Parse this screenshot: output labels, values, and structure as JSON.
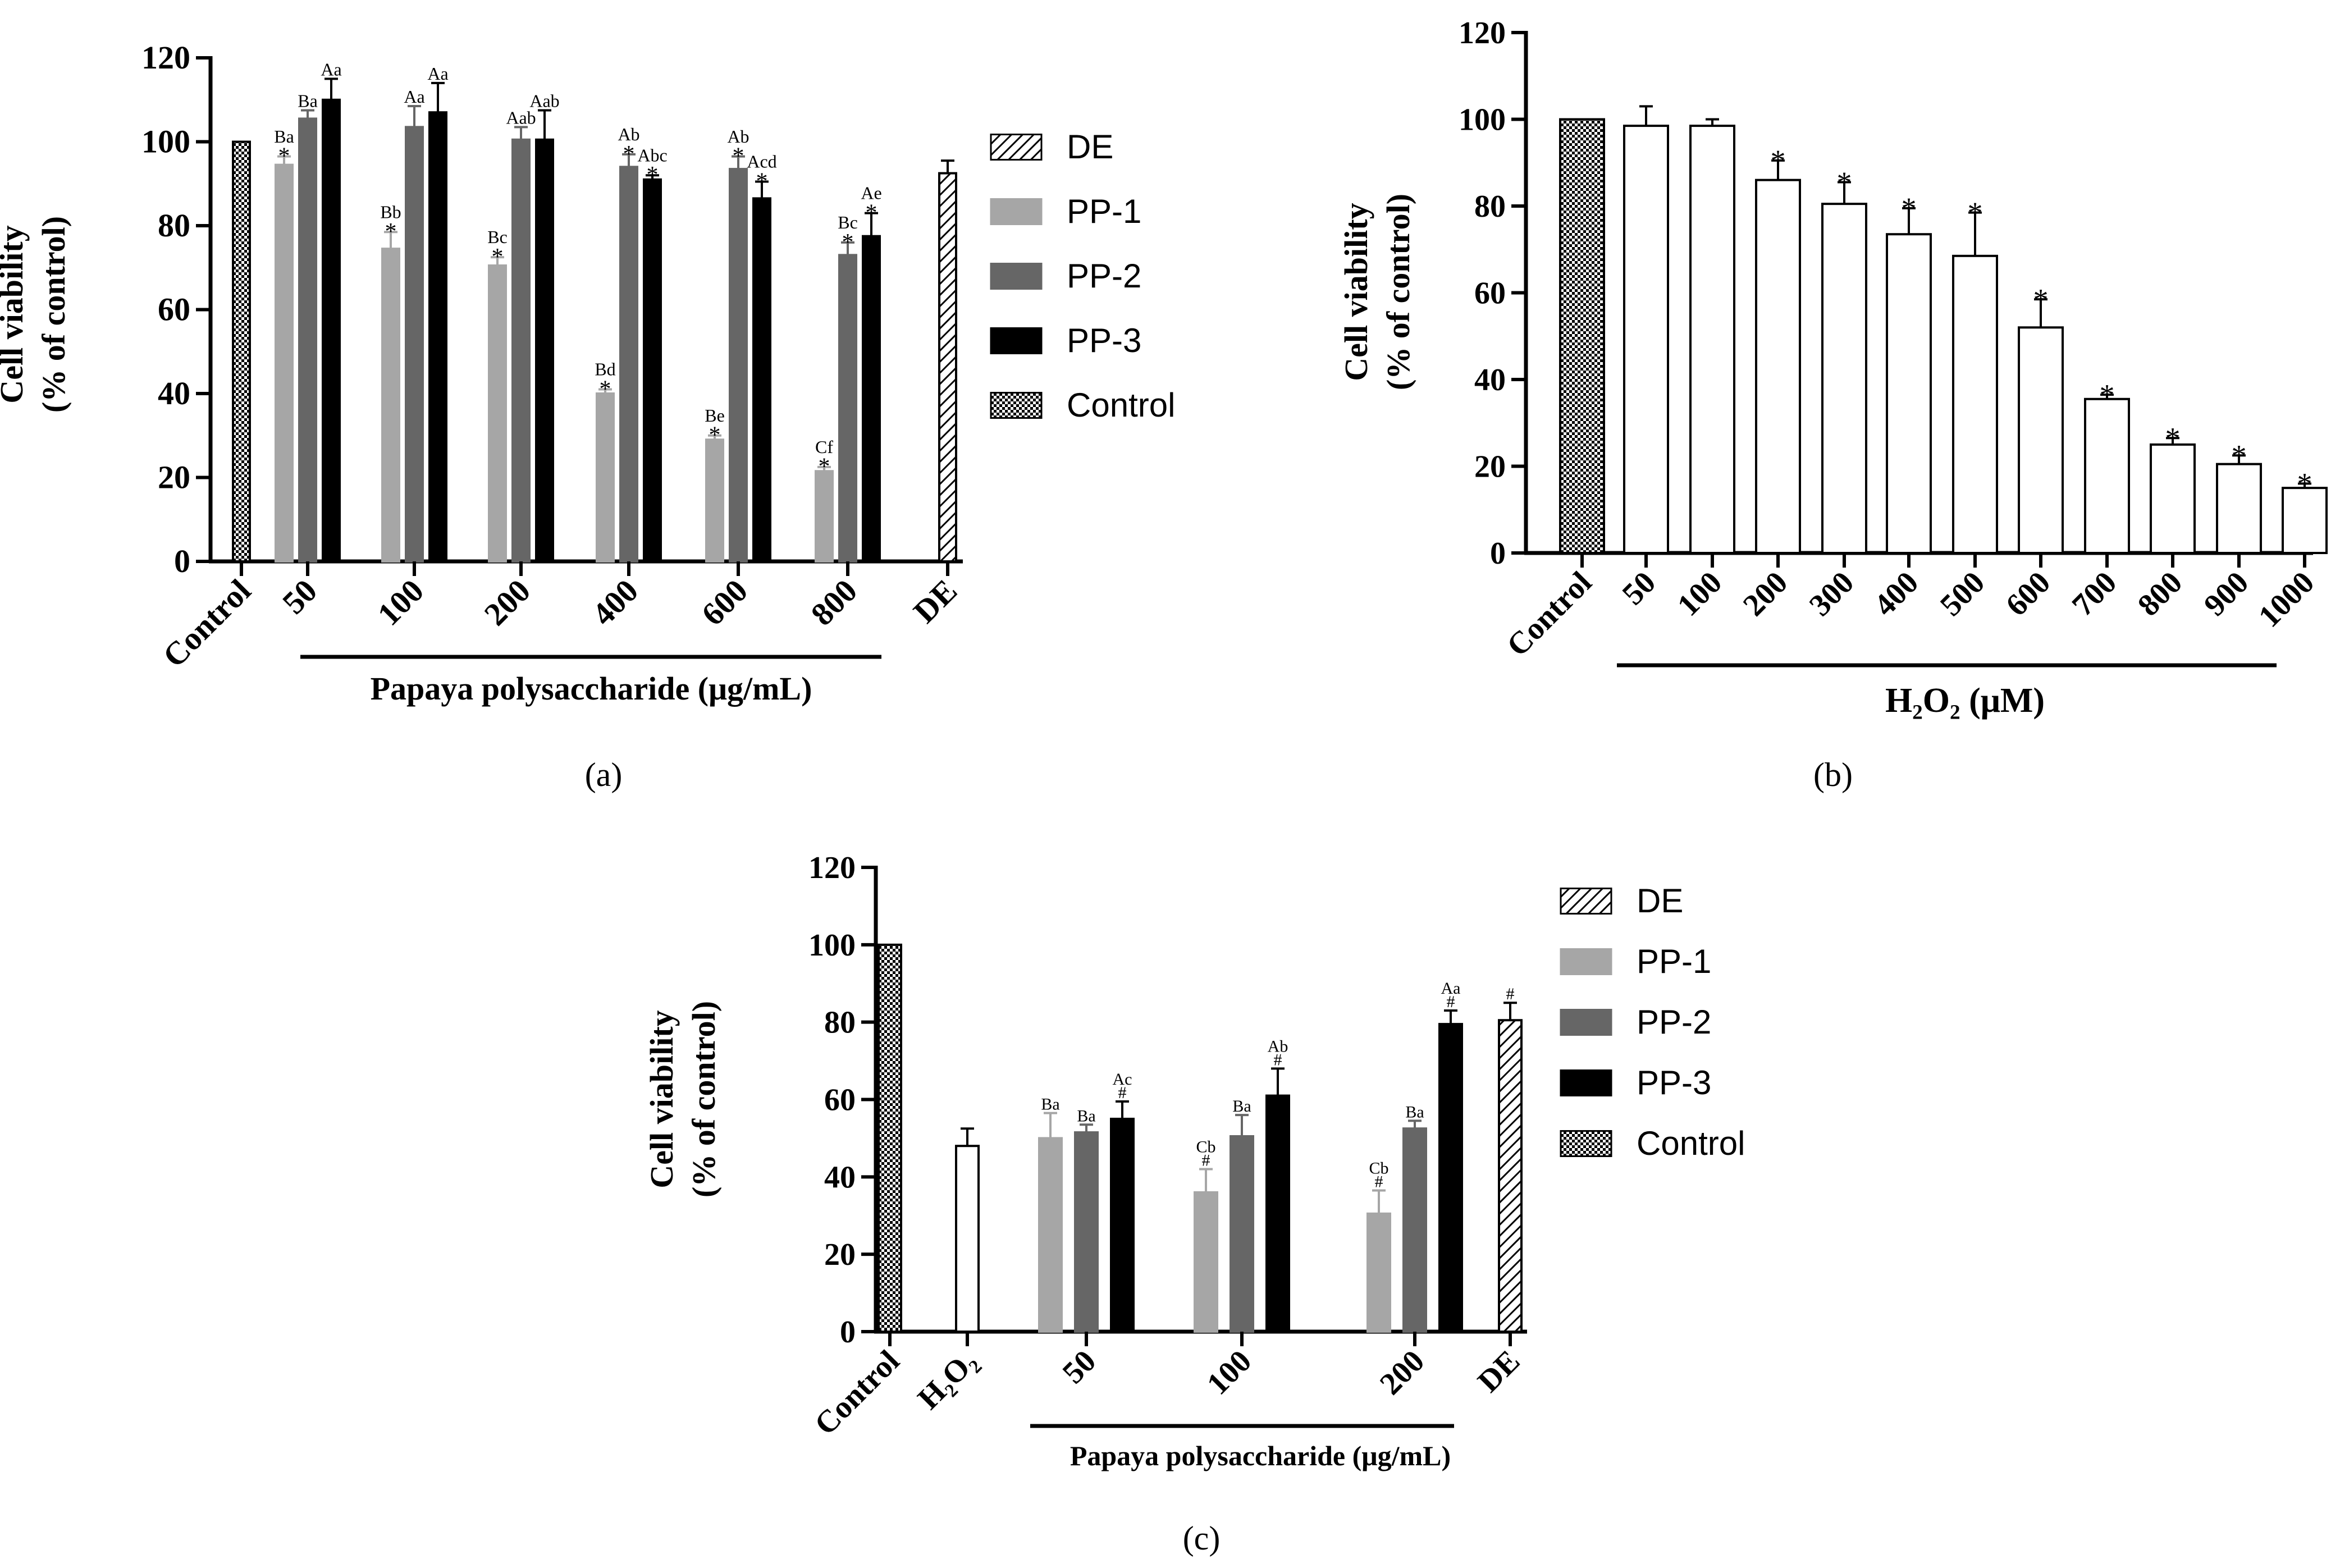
{
  "figure": {
    "colors": {
      "pp1": "#a6a6a6",
      "pp2": "#666666",
      "pp3": "#000000",
      "de": "#ffffff",
      "control": "#ffffff",
      "h2o2": "#ffffff"
    }
  },
  "chart_data": [
    {
      "id": "a",
      "panel_label": "(a)",
      "type": "bar",
      "title": "",
      "ylabel_line1": "Cell viability",
      "ylabel_line2": "(% of control)",
      "xlabel": "Papaya polysaccharide (μg/mL)",
      "ylim": [
        0,
        120
      ],
      "yticks": [
        "0",
        "20",
        "40",
        "60",
        "80",
        "100",
        "120"
      ],
      "groups": [
        "Control",
        "50",
        "100",
        "200",
        "400",
        "600",
        "800",
        "DE"
      ],
      "legend": [
        "DE",
        "PP-1",
        "PP-2",
        "PP-3",
        "Control"
      ],
      "bars": [
        {
          "group": 0,
          "series": "Control",
          "value": 100,
          "err": 0,
          "label": "",
          "star": ""
        },
        {
          "group": 1,
          "series": "PP-1",
          "value": 94.5,
          "err": 2,
          "label": "Ba",
          "star": "*"
        },
        {
          "group": 1,
          "series": "PP-2",
          "value": 105.5,
          "err": 2,
          "label": "Ba",
          "star": ""
        },
        {
          "group": 1,
          "series": "PP-3",
          "value": 110,
          "err": 5,
          "label": "Aa",
          "star": ""
        },
        {
          "group": 2,
          "series": "PP-1",
          "value": 74.5,
          "err": 4,
          "label": "Bb",
          "star": "*"
        },
        {
          "group": 2,
          "series": "PP-2",
          "value": 103.5,
          "err": 5,
          "label": "Aa",
          "star": ""
        },
        {
          "group": 2,
          "series": "PP-3",
          "value": 107,
          "err": 7,
          "label": "Aa",
          "star": ""
        },
        {
          "group": 3,
          "series": "PP-1",
          "value": 70.5,
          "err": 2,
          "label": "Bc",
          "star": "*"
        },
        {
          "group": 3,
          "series": "PP-2",
          "value": 100.5,
          "err": 3,
          "label": "Aab",
          "star": ""
        },
        {
          "group": 3,
          "series": "PP-3",
          "value": 100.5,
          "err": 7,
          "label": "Aab",
          "star": ""
        },
        {
          "group": 4,
          "series": "PP-1",
          "value": 40,
          "err": 1,
          "label": "Bd",
          "star": "*"
        },
        {
          "group": 4,
          "series": "PP-2",
          "value": 94,
          "err": 3,
          "label": "Ab",
          "star": "*"
        },
        {
          "group": 4,
          "series": "PP-3",
          "value": 91,
          "err": 1,
          "label": "Abc",
          "star": "*"
        },
        {
          "group": 5,
          "series": "PP-1",
          "value": 29,
          "err": 1,
          "label": "Be",
          "star": "*"
        },
        {
          "group": 5,
          "series": "PP-2",
          "value": 93.5,
          "err": 3,
          "label": "Ab",
          "star": "*"
        },
        {
          "group": 5,
          "series": "PP-3",
          "value": 86.5,
          "err": 4,
          "label": "Acd",
          "star": "*"
        },
        {
          "group": 6,
          "series": "PP-1",
          "value": 21.5,
          "err": 1,
          "label": "Cf",
          "star": "*"
        },
        {
          "group": 6,
          "series": "PP-2",
          "value": 73,
          "err": 3,
          "label": "Bc",
          "star": "*"
        },
        {
          "group": 6,
          "series": "PP-3",
          "value": 77.5,
          "err": 5.5,
          "label": "Ae",
          "star": "*"
        },
        {
          "group": 7,
          "series": "DE",
          "value": 92.5,
          "err": 3,
          "label": "",
          "star": ""
        }
      ]
    },
    {
      "id": "b",
      "panel_label": "(b)",
      "type": "bar",
      "title": "",
      "ylabel_line1": "Cell viability",
      "ylabel_line2": "(% of control)",
      "xlabel": "H₂O₂ (μM)",
      "ylim": [
        0,
        120
      ],
      "yticks": [
        "0",
        "20",
        "40",
        "60",
        "80",
        "100",
        "120"
      ],
      "groups": [
        "Control",
        "50",
        "100",
        "200",
        "300",
        "400",
        "500",
        "600",
        "700",
        "800",
        "900",
        "1000"
      ],
      "legend": [],
      "bars": [
        {
          "group": 0,
          "series": "Control",
          "value": 100,
          "err": 0,
          "label": "",
          "star": ""
        },
        {
          "group": 1,
          "series": "H2O2",
          "value": 98.5,
          "err": 4.5,
          "label": "",
          "star": ""
        },
        {
          "group": 2,
          "series": "H2O2",
          "value": 98.5,
          "err": 1.5,
          "label": "",
          "star": ""
        },
        {
          "group": 3,
          "series": "H2O2",
          "value": 86,
          "err": 4.5,
          "label": "",
          "star": "*"
        },
        {
          "group": 4,
          "series": "H2O2",
          "value": 80.5,
          "err": 5,
          "label": "",
          "star": "*"
        },
        {
          "group": 5,
          "series": "H2O2",
          "value": 73.5,
          "err": 6,
          "label": "",
          "star": "*"
        },
        {
          "group": 6,
          "series": "H2O2",
          "value": 68.5,
          "err": 10,
          "label": "",
          "star": "*"
        },
        {
          "group": 7,
          "series": "H2O2",
          "value": 52,
          "err": 6.5,
          "label": "",
          "star": "*"
        },
        {
          "group": 8,
          "series": "H2O2",
          "value": 35.5,
          "err": 1,
          "label": "",
          "star": "*"
        },
        {
          "group": 9,
          "series": "H2O2",
          "value": 25,
          "err": 1.5,
          "label": "",
          "star": "*"
        },
        {
          "group": 10,
          "series": "H2O2",
          "value": 20.5,
          "err": 2,
          "label": "",
          "star": "*"
        },
        {
          "group": 11,
          "series": "H2O2",
          "value": 15,
          "err": 1,
          "label": "",
          "star": "*"
        }
      ]
    },
    {
      "id": "c",
      "panel_label": "(c)",
      "type": "bar",
      "title": "",
      "ylabel_line1": "Cell viability",
      "ylabel_line2": "(% of control)",
      "xlabel": "Papaya polysaccharide (μg/mL)",
      "ylim": [
        0,
        120
      ],
      "yticks": [
        "0",
        "20",
        "40",
        "60",
        "80",
        "100",
        "120"
      ],
      "groups": [
        "Control",
        "H₂O₂",
        "50",
        "100",
        "200",
        "DE"
      ],
      "legend": [
        "DE",
        "PP-1",
        "PP-2",
        "PP-3",
        "Control"
      ],
      "bars": [
        {
          "group": 0,
          "series": "Control",
          "value": 100,
          "err": 0,
          "label": "",
          "star": ""
        },
        {
          "group": 1,
          "series": "H2O2",
          "value": 48,
          "err": 4.5,
          "label": "",
          "star": ""
        },
        {
          "group": 2,
          "series": "PP-1",
          "value": 50,
          "err": 6.5,
          "label": "Ba",
          "star": ""
        },
        {
          "group": 2,
          "series": "PP-2",
          "value": 51.5,
          "err": 2,
          "label": "Ba",
          "star": ""
        },
        {
          "group": 2,
          "series": "PP-3",
          "value": 55,
          "err": 4.5,
          "label": "Ac",
          "star": "#"
        },
        {
          "group": 3,
          "series": "PP-1",
          "value": 36,
          "err": 6,
          "label": "Cb",
          "star": "#"
        },
        {
          "group": 3,
          "series": "PP-2",
          "value": 50.5,
          "err": 5.5,
          "label": "Ba",
          "star": ""
        },
        {
          "group": 3,
          "series": "PP-3",
          "value": 61,
          "err": 7,
          "label": "Ab",
          "star": "#"
        },
        {
          "group": 4,
          "series": "PP-1",
          "value": 30.5,
          "err": 6,
          "label": "Cb",
          "star": "#"
        },
        {
          "group": 4,
          "series": "PP-2",
          "value": 52.5,
          "err": 2,
          "label": "Ba",
          "star": ""
        },
        {
          "group": 4,
          "series": "PP-3",
          "value": 79.5,
          "err": 3.5,
          "label": "Aa",
          "star": "#"
        },
        {
          "group": 5,
          "series": "DE",
          "value": 80.5,
          "err": 4.5,
          "label": "",
          "star": "#"
        }
      ]
    }
  ]
}
